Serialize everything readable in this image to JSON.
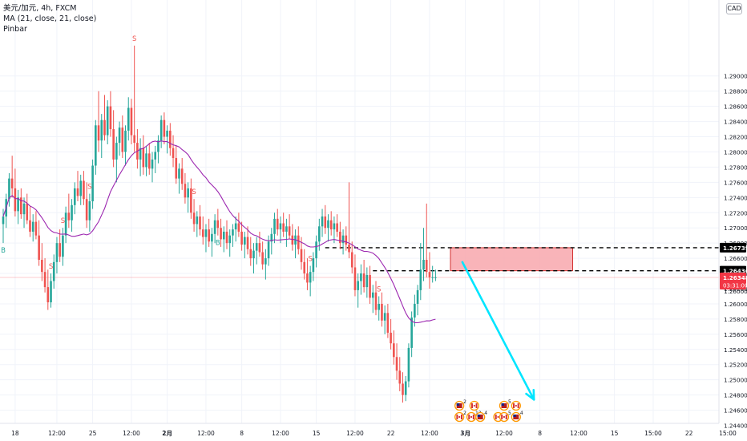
{
  "header": {
    "title": "美元/加元, 4h, FXCM",
    "ma_label": "MA (21, close, 21, close)",
    "indicator_label": "Pinbar"
  },
  "currency_badge": "CAD",
  "colors": {
    "up": "#26a69a",
    "down": "#ef5350",
    "ma": "#9c27b0",
    "arrow": "#00e5ff",
    "zone_fill": "#f8a7ad",
    "zone_stroke": "#d32f2f",
    "price_label_bg": "#000000",
    "current_price_bg": "#f23645"
  },
  "chart_data": {
    "type": "candlestick",
    "symbol": "USD/CAD",
    "timeframe": "4h",
    "y_axis": {
      "range": [
        1.243,
        1.3
      ],
      "tick_labels": [
        "1.29000",
        "1.28800",
        "1.28600",
        "1.28400",
        "1.28200",
        "1.28000",
        "1.27800",
        "1.27600",
        "1.27400",
        "1.27200",
        "1.27000",
        "1.26800",
        "1.26600",
        "1.26400",
        "1.26200",
        "1.26000",
        "1.25800",
        "1.25600",
        "1.25400",
        "1.25200",
        "1.25000",
        "1.24800",
        "1.24600",
        "1.24400"
      ],
      "tick_values": [
        1.29,
        1.288,
        1.286,
        1.284,
        1.282,
        1.28,
        1.278,
        1.276,
        1.274,
        1.272,
        1.27,
        1.268,
        1.266,
        1.264,
        1.262,
        1.26,
        1.258,
        1.256,
        1.254,
        1.252,
        1.25,
        1.248,
        1.246,
        1.244
      ]
    },
    "x_axis": {
      "tick_labels": [
        "18",
        "12:00",
        "25",
        "12:00",
        "2月",
        "12:00",
        "8",
        "12:00",
        "15",
        "12:00",
        "22",
        "12:00",
        "3月",
        "12:00",
        "8",
        "12:00",
        "15",
        "15:00",
        "22",
        "15:00"
      ],
      "tick_indices": [
        4,
        18,
        30,
        43,
        55,
        68,
        80,
        93,
        105,
        118,
        130,
        143,
        155,
        168,
        180,
        193,
        205,
        218,
        230,
        243
      ],
      "visible_candles": 154
    },
    "price_levels": [
      {
        "label": "1.26739",
        "value": 1.26739,
        "style": "dashed"
      },
      {
        "label": "1.26436",
        "value": 1.26436,
        "style": "dashed"
      }
    ],
    "current_price": {
      "label": "1.26348",
      "value": 1.26348,
      "countdown": "03:31:00"
    },
    "next_axis_label": "1.26000",
    "supply_zone": {
      "low": 1.26436,
      "high": 1.26739,
      "from_index": 150,
      "to_index": 191
    },
    "projection_arrow": {
      "from_index": 154,
      "from_price": 1.2655,
      "to_index": 178,
      "to_price": 1.2474
    },
    "ma": {
      "period": 21,
      "source": "close"
    },
    "pinbar_marks": [
      {
        "index": 0,
        "label": "B",
        "position": "below"
      },
      {
        "index": 16,
        "label": "S",
        "position": "above"
      },
      {
        "index": 20,
        "label": "S",
        "position": "above"
      },
      {
        "index": 29,
        "label": "S",
        "position": "above"
      },
      {
        "index": 44,
        "label": "S",
        "position": "above"
      },
      {
        "index": 64,
        "label": "S",
        "position": "above"
      },
      {
        "index": 72,
        "label": "B",
        "position": "below"
      },
      {
        "index": 103,
        "label": "S",
        "position": "above"
      },
      {
        "index": 126,
        "label": "S",
        "position": "above"
      },
      {
        "index": 149,
        "label": "S",
        "position": "above"
      },
      {
        "index": 151,
        "label": "S",
        "position": "above"
      }
    ],
    "candles": [
      {
        "o": 1.2705,
        "h": 1.2725,
        "l": 1.268,
        "c": 1.2715
      },
      {
        "o": 1.2715,
        "h": 1.2745,
        "l": 1.27,
        "c": 1.2738
      },
      {
        "o": 1.2738,
        "h": 1.2772,
        "l": 1.2728,
        "c": 1.2765
      },
      {
        "o": 1.2765,
        "h": 1.2795,
        "l": 1.274,
        "c": 1.2752
      },
      {
        "o": 1.2752,
        "h": 1.2778,
        "l": 1.2715,
        "c": 1.2722
      },
      {
        "o": 1.2722,
        "h": 1.275,
        "l": 1.2705,
        "c": 1.274
      },
      {
        "o": 1.274,
        "h": 1.2752,
        "l": 1.2712,
        "c": 1.2718
      },
      {
        "o": 1.2718,
        "h": 1.274,
        "l": 1.27,
        "c": 1.2732
      },
      {
        "o": 1.2732,
        "h": 1.2745,
        "l": 1.2705,
        "c": 1.271
      },
      {
        "o": 1.271,
        "h": 1.2728,
        "l": 1.2688,
        "c": 1.2695
      },
      {
        "o": 1.2695,
        "h": 1.2718,
        "l": 1.2682,
        "c": 1.2708
      },
      {
        "o": 1.2708,
        "h": 1.2722,
        "l": 1.2685,
        "c": 1.269
      },
      {
        "o": 1.269,
        "h": 1.271,
        "l": 1.265,
        "c": 1.2658
      },
      {
        "o": 1.2658,
        "h": 1.268,
        "l": 1.263,
        "c": 1.2642
      },
      {
        "o": 1.2642,
        "h": 1.266,
        "l": 1.2615,
        "c": 1.2622
      },
      {
        "o": 1.2622,
        "h": 1.2645,
        "l": 1.2592,
        "c": 1.2602
      },
      {
        "o": 1.2602,
        "h": 1.264,
        "l": 1.2595,
        "c": 1.263
      },
      {
        "o": 1.263,
        "h": 1.2665,
        "l": 1.262,
        "c": 1.2655
      },
      {
        "o": 1.2655,
        "h": 1.2688,
        "l": 1.264,
        "c": 1.268
      },
      {
        "o": 1.268,
        "h": 1.2698,
        "l": 1.2655,
        "c": 1.2662
      },
      {
        "o": 1.2662,
        "h": 1.27,
        "l": 1.265,
        "c": 1.269
      },
      {
        "o": 1.269,
        "h": 1.2728,
        "l": 1.268,
        "c": 1.272
      },
      {
        "o": 1.272,
        "h": 1.2745,
        "l": 1.27,
        "c": 1.271
      },
      {
        "o": 1.271,
        "h": 1.2738,
        "l": 1.2695,
        "c": 1.273
      },
      {
        "o": 1.273,
        "h": 1.276,
        "l": 1.2718,
        "c": 1.2752
      },
      {
        "o": 1.2752,
        "h": 1.2775,
        "l": 1.2735,
        "c": 1.2742
      },
      {
        "o": 1.2742,
        "h": 1.277,
        "l": 1.273,
        "c": 1.2762
      },
      {
        "o": 1.2762,
        "h": 1.2775,
        "l": 1.273,
        "c": 1.2738
      },
      {
        "o": 1.2738,
        "h": 1.276,
        "l": 1.27,
        "c": 1.271
      },
      {
        "o": 1.271,
        "h": 1.2745,
        "l": 1.2695,
        "c": 1.2735
      },
      {
        "o": 1.2735,
        "h": 1.279,
        "l": 1.2725,
        "c": 1.2782
      },
      {
        "o": 1.2782,
        "h": 1.2842,
        "l": 1.277,
        "c": 1.2835
      },
      {
        "o": 1.2835,
        "h": 1.288,
        "l": 1.28,
        "c": 1.2815
      },
      {
        "o": 1.2815,
        "h": 1.285,
        "l": 1.2792,
        "c": 1.2842
      },
      {
        "o": 1.2842,
        "h": 1.2875,
        "l": 1.2815,
        "c": 1.2822
      },
      {
        "o": 1.2822,
        "h": 1.2868,
        "l": 1.281,
        "c": 1.286
      },
      {
        "o": 1.286,
        "h": 1.288,
        "l": 1.282,
        "c": 1.283
      },
      {
        "o": 1.283,
        "h": 1.2855,
        "l": 1.278,
        "c": 1.279
      },
      {
        "o": 1.279,
        "h": 1.282,
        "l": 1.276,
        "c": 1.2812
      },
      {
        "o": 1.2812,
        "h": 1.284,
        "l": 1.2795,
        "c": 1.2832
      },
      {
        "o": 1.2832,
        "h": 1.2848,
        "l": 1.2792,
        "c": 1.28
      },
      {
        "o": 1.28,
        "h": 1.2835,
        "l": 1.2782,
        "c": 1.2828
      },
      {
        "o": 1.2828,
        "h": 1.2872,
        "l": 1.2815,
        "c": 1.2858
      },
      {
        "o": 1.2858,
        "h": 1.287,
        "l": 1.281,
        "c": 1.2822
      },
      {
        "o": 1.2822,
        "h": 1.294,
        "l": 1.28,
        "c": 1.2812
      },
      {
        "o": 1.2812,
        "h": 1.283,
        "l": 1.2778,
        "c": 1.279
      },
      {
        "o": 1.279,
        "h": 1.2818,
        "l": 1.2768,
        "c": 1.2805
      },
      {
        "o": 1.2805,
        "h": 1.2822,
        "l": 1.277,
        "c": 1.278
      },
      {
        "o": 1.278,
        "h": 1.2808,
        "l": 1.2768,
        "c": 1.2798
      },
      {
        "o": 1.2798,
        "h": 1.2812,
        "l": 1.277,
        "c": 1.2778
      },
      {
        "o": 1.2778,
        "h": 1.28,
        "l": 1.276,
        "c": 1.279
      },
      {
        "o": 1.279,
        "h": 1.2808,
        "l": 1.2772,
        "c": 1.28
      },
      {
        "o": 1.28,
        "h": 1.2822,
        "l": 1.2785,
        "c": 1.2815
      },
      {
        "o": 1.2815,
        "h": 1.2848,
        "l": 1.2805,
        "c": 1.2842
      },
      {
        "o": 1.2842,
        "h": 1.2852,
        "l": 1.281,
        "c": 1.282
      },
      {
        "o": 1.282,
        "h": 1.2835,
        "l": 1.2798,
        "c": 1.2828
      },
      {
        "o": 1.2828,
        "h": 1.2838,
        "l": 1.2795,
        "c": 1.2805
      },
      {
        "o": 1.2805,
        "h": 1.2822,
        "l": 1.278,
        "c": 1.2792
      },
      {
        "o": 1.2792,
        "h": 1.2808,
        "l": 1.2758,
        "c": 1.2765
      },
      {
        "o": 1.2765,
        "h": 1.2785,
        "l": 1.2745,
        "c": 1.2778
      },
      {
        "o": 1.2778,
        "h": 1.2792,
        "l": 1.275,
        "c": 1.2758
      },
      {
        "o": 1.2758,
        "h": 1.2772,
        "l": 1.2732,
        "c": 1.274
      },
      {
        "o": 1.274,
        "h": 1.276,
        "l": 1.272,
        "c": 1.2752
      },
      {
        "o": 1.2752,
        "h": 1.2765,
        "l": 1.2712,
        "c": 1.272
      },
      {
        "o": 1.272,
        "h": 1.2738,
        "l": 1.2695,
        "c": 1.2705
      },
      {
        "o": 1.2705,
        "h": 1.2722,
        "l": 1.2688,
        "c": 1.2715
      },
      {
        "o": 1.2715,
        "h": 1.273,
        "l": 1.269,
        "c": 1.2698
      },
      {
        "o": 1.2698,
        "h": 1.2715,
        "l": 1.2678,
        "c": 1.2688
      },
      {
        "o": 1.2688,
        "h": 1.2705,
        "l": 1.2668,
        "c": 1.2698
      },
      {
        "o": 1.2698,
        "h": 1.2712,
        "l": 1.2675,
        "c": 1.2682
      },
      {
        "o": 1.2682,
        "h": 1.27,
        "l": 1.2662,
        "c": 1.2692
      },
      {
        "o": 1.2692,
        "h": 1.2718,
        "l": 1.268,
        "c": 1.271
      },
      {
        "o": 1.271,
        "h": 1.2725,
        "l": 1.269,
        "c": 1.27
      },
      {
        "o": 1.27,
        "h": 1.2712,
        "l": 1.2675,
        "c": 1.2685
      },
      {
        "o": 1.2685,
        "h": 1.2702,
        "l": 1.2668,
        "c": 1.2695
      },
      {
        "o": 1.2695,
        "h": 1.271,
        "l": 1.2672,
        "c": 1.268
      },
      {
        "o": 1.268,
        "h": 1.2698,
        "l": 1.2662,
        "c": 1.269
      },
      {
        "o": 1.269,
        "h": 1.2705,
        "l": 1.2675,
        "c": 1.2698
      },
      {
        "o": 1.2698,
        "h": 1.2715,
        "l": 1.2682,
        "c": 1.2706
      },
      {
        "o": 1.2706,
        "h": 1.272,
        "l": 1.2688,
        "c": 1.2695
      },
      {
        "o": 1.2695,
        "h": 1.2708,
        "l": 1.267,
        "c": 1.2678
      },
      {
        "o": 1.2678,
        "h": 1.2695,
        "l": 1.266,
        "c": 1.2688
      },
      {
        "o": 1.2688,
        "h": 1.2702,
        "l": 1.2665,
        "c": 1.2672
      },
      {
        "o": 1.2672,
        "h": 1.2688,
        "l": 1.265,
        "c": 1.266
      },
      {
        "o": 1.266,
        "h": 1.268,
        "l": 1.264,
        "c": 1.267
      },
      {
        "o": 1.267,
        "h": 1.2688,
        "l": 1.2652,
        "c": 1.268
      },
      {
        "o": 1.268,
        "h": 1.2695,
        "l": 1.2662,
        "c": 1.2668
      },
      {
        "o": 1.2668,
        "h": 1.2682,
        "l": 1.2645,
        "c": 1.2652
      },
      {
        "o": 1.2652,
        "h": 1.2672,
        "l": 1.2632,
        "c": 1.266
      },
      {
        "o": 1.266,
        "h": 1.269,
        "l": 1.265,
        "c": 1.2682
      },
      {
        "o": 1.2682,
        "h": 1.27,
        "l": 1.2665,
        "c": 1.2692
      },
      {
        "o": 1.2692,
        "h": 1.272,
        "l": 1.268,
        "c": 1.2712
      },
      {
        "o": 1.2712,
        "h": 1.2725,
        "l": 1.269,
        "c": 1.2698
      },
      {
        "o": 1.2698,
        "h": 1.2715,
        "l": 1.268,
        "c": 1.2706
      },
      {
        "o": 1.2706,
        "h": 1.272,
        "l": 1.2688,
        "c": 1.2695
      },
      {
        "o": 1.2695,
        "h": 1.2712,
        "l": 1.2675,
        "c": 1.2702
      },
      {
        "o": 1.2702,
        "h": 1.2718,
        "l": 1.2685,
        "c": 1.269
      },
      {
        "o": 1.269,
        "h": 1.2705,
        "l": 1.267,
        "c": 1.2678
      },
      {
        "o": 1.2678,
        "h": 1.2698,
        "l": 1.266,
        "c": 1.269
      },
      {
        "o": 1.269,
        "h": 1.2702,
        "l": 1.2665,
        "c": 1.2672
      },
      {
        "o": 1.2672,
        "h": 1.2688,
        "l": 1.2645,
        "c": 1.2655
      },
      {
        "o": 1.2655,
        "h": 1.2672,
        "l": 1.2632,
        "c": 1.264
      },
      {
        "o": 1.264,
        "h": 1.266,
        "l": 1.2618,
        "c": 1.2628
      },
      {
        "o": 1.2628,
        "h": 1.265,
        "l": 1.261,
        "c": 1.2642
      },
      {
        "o": 1.2642,
        "h": 1.2668,
        "l": 1.263,
        "c": 1.266
      },
      {
        "o": 1.266,
        "h": 1.269,
        "l": 1.2648,
        "c": 1.2682
      },
      {
        "o": 1.2682,
        "h": 1.2712,
        "l": 1.267,
        "c": 1.2702
      },
      {
        "o": 1.2702,
        "h": 1.2725,
        "l": 1.2688,
        "c": 1.2715
      },
      {
        "o": 1.2715,
        "h": 1.273,
        "l": 1.2692,
        "c": 1.27
      },
      {
        "o": 1.27,
        "h": 1.2718,
        "l": 1.2682,
        "c": 1.271
      },
      {
        "o": 1.271,
        "h": 1.2722,
        "l": 1.269,
        "c": 1.2698
      },
      {
        "o": 1.2698,
        "h": 1.2715,
        "l": 1.268,
        "c": 1.2706
      },
      {
        "o": 1.2706,
        "h": 1.2718,
        "l": 1.2688,
        "c": 1.2695
      },
      {
        "o": 1.2695,
        "h": 1.2708,
        "l": 1.2672,
        "c": 1.268
      },
      {
        "o": 1.268,
        "h": 1.2698,
        "l": 1.2665,
        "c": 1.269
      },
      {
        "o": 1.269,
        "h": 1.2702,
        "l": 1.267,
        "c": 1.2678
      },
      {
        "o": 1.2678,
        "h": 1.276,
        "l": 1.266,
        "c": 1.2668
      },
      {
        "o": 1.2668,
        "h": 1.2682,
        "l": 1.264,
        "c": 1.2648
      },
      {
        "o": 1.2648,
        "h": 1.2665,
        "l": 1.261,
        "c": 1.2618
      },
      {
        "o": 1.2618,
        "h": 1.264,
        "l": 1.2595,
        "c": 1.263
      },
      {
        "o": 1.263,
        "h": 1.2652,
        "l": 1.2612,
        "c": 1.264
      },
      {
        "o": 1.264,
        "h": 1.2658,
        "l": 1.2615,
        "c": 1.2622
      },
      {
        "o": 1.2622,
        "h": 1.2648,
        "l": 1.2608,
        "c": 1.2638
      },
      {
        "o": 1.2638,
        "h": 1.265,
        "l": 1.26,
        "c": 1.2608
      },
      {
        "o": 1.2608,
        "h": 1.2625,
        "l": 1.2588,
        "c": 1.2615
      },
      {
        "o": 1.2615,
        "h": 1.263,
        "l": 1.2585,
        "c": 1.2592
      },
      {
        "o": 1.2592,
        "h": 1.261,
        "l": 1.2578,
        "c": 1.26
      },
      {
        "o": 1.26,
        "h": 1.2615,
        "l": 1.257,
        "c": 1.2578
      },
      {
        "o": 1.2578,
        "h": 1.2598,
        "l": 1.256,
        "c": 1.2588
      },
      {
        "o": 1.2588,
        "h": 1.26,
        "l": 1.2555,
        "c": 1.2562
      },
      {
        "o": 1.2562,
        "h": 1.258,
        "l": 1.254,
        "c": 1.2548
      },
      {
        "o": 1.2548,
        "h": 1.2565,
        "l": 1.252,
        "c": 1.253
      },
      {
        "o": 1.253,
        "h": 1.2548,
        "l": 1.25,
        "c": 1.2512
      },
      {
        "o": 1.2512,
        "h": 1.253,
        "l": 1.2485,
        "c": 1.2495
      },
      {
        "o": 1.2495,
        "h": 1.251,
        "l": 1.247,
        "c": 1.248
      },
      {
        "o": 1.248,
        "h": 1.2505,
        "l": 1.2472,
        "c": 1.2498
      },
      {
        "o": 1.2498,
        "h": 1.2548,
        "l": 1.249,
        "c": 1.2542
      },
      {
        "o": 1.2542,
        "h": 1.259,
        "l": 1.253,
        "c": 1.2582
      },
      {
        "o": 1.2582,
        "h": 1.2612,
        "l": 1.257,
        "c": 1.26
      },
      {
        "o": 1.26,
        "h": 1.2625,
        "l": 1.2585,
        "c": 1.2618
      },
      {
        "o": 1.2618,
        "h": 1.268,
        "l": 1.2605,
        "c": 1.2645
      },
      {
        "o": 1.2645,
        "h": 1.27,
        "l": 1.263,
        "c": 1.2658
      },
      {
        "o": 1.2658,
        "h": 1.2732,
        "l": 1.2635,
        "c": 1.2642
      },
      {
        "o": 1.2642,
        "h": 1.2668,
        "l": 1.262,
        "c": 1.2635
      },
      {
        "o": 1.2635,
        "h": 1.265,
        "l": 1.2628,
        "c": 1.2635
      },
      {
        "o": 1.2635,
        "h": 1.2645,
        "l": 1.263,
        "c": 1.2635
      }
    ],
    "event_markers": [
      {
        "index": 153,
        "row": 0,
        "flag": "us",
        "count": "2"
      },
      {
        "index": 158,
        "row": 0,
        "flag": "ca",
        "count": ""
      },
      {
        "index": 168,
        "row": 0,
        "flag": "us",
        "count": "5"
      },
      {
        "index": 172,
        "row": 0,
        "flag": "ca",
        "count": ""
      },
      {
        "index": 153,
        "row": 1,
        "flag": "ca",
        "count": "2"
      },
      {
        "index": 157,
        "row": 1,
        "flag": "ca",
        "count": "12"
      },
      {
        "index": 160,
        "row": 1,
        "flag": "us",
        "count": "4"
      },
      {
        "index": 166,
        "row": 1,
        "flag": "ca",
        "count": ""
      },
      {
        "index": 168,
        "row": 1,
        "flag": "ca",
        "count": "5"
      },
      {
        "index": 172,
        "row": 1,
        "flag": "us",
        "count": "4"
      }
    ]
  }
}
